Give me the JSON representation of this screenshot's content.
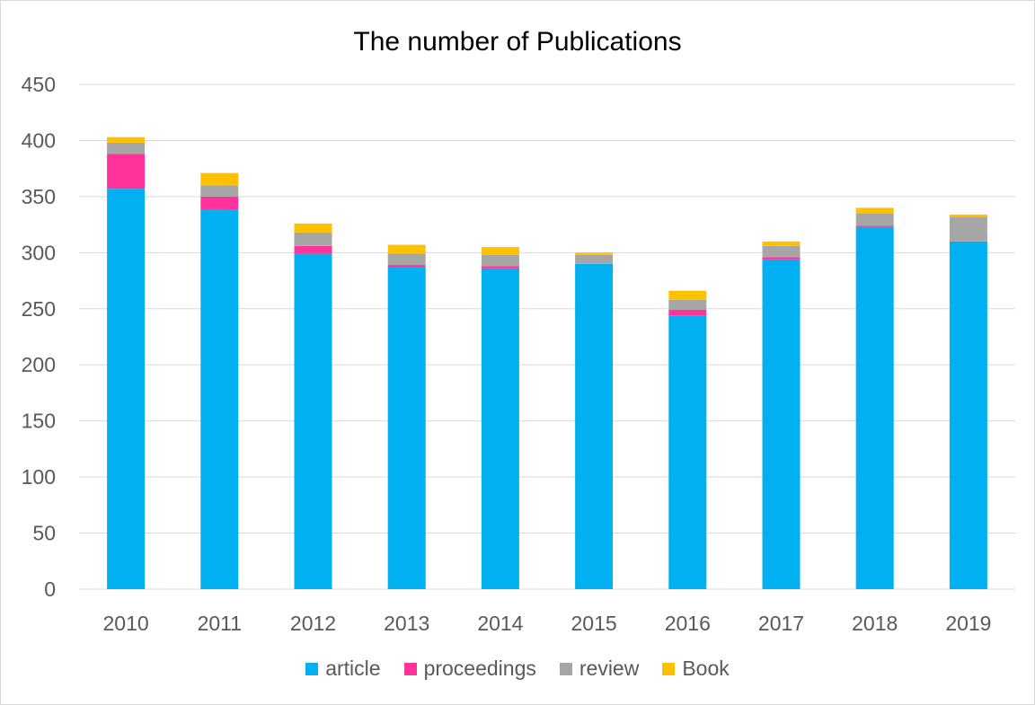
{
  "chart_data": {
    "type": "bar",
    "stacked": true,
    "title": "The number of Publications",
    "xlabel": "",
    "ylabel": "",
    "ylim": [
      0,
      450
    ],
    "y_ticks": [
      0,
      50,
      100,
      150,
      200,
      250,
      300,
      350,
      400,
      450
    ],
    "grid": true,
    "legend_position": "bottom",
    "categories": [
      "2010",
      "2011",
      "2012",
      "2013",
      "2014",
      "2015",
      "2016",
      "2017",
      "2018",
      "2019"
    ],
    "series": [
      {
        "name": "article",
        "color": "#00b0f0",
        "values": [
          357,
          338,
          299,
          287,
          286,
          290,
          244,
          294,
          323,
          310
        ]
      },
      {
        "name": "proceedings",
        "color": "#ff3399",
        "values": [
          31,
          12,
          7,
          2,
          2,
          0,
          5,
          2,
          1,
          0
        ]
      },
      {
        "name": "review",
        "color": "#a6a6a6",
        "values": [
          10,
          10,
          12,
          10,
          10,
          8,
          9,
          10,
          11,
          22
        ]
      },
      {
        "name": "Book",
        "color": "#ffc000",
        "values": [
          5,
          11,
          8,
          8,
          7,
          2,
          8,
          4,
          5,
          2
        ]
      }
    ]
  }
}
